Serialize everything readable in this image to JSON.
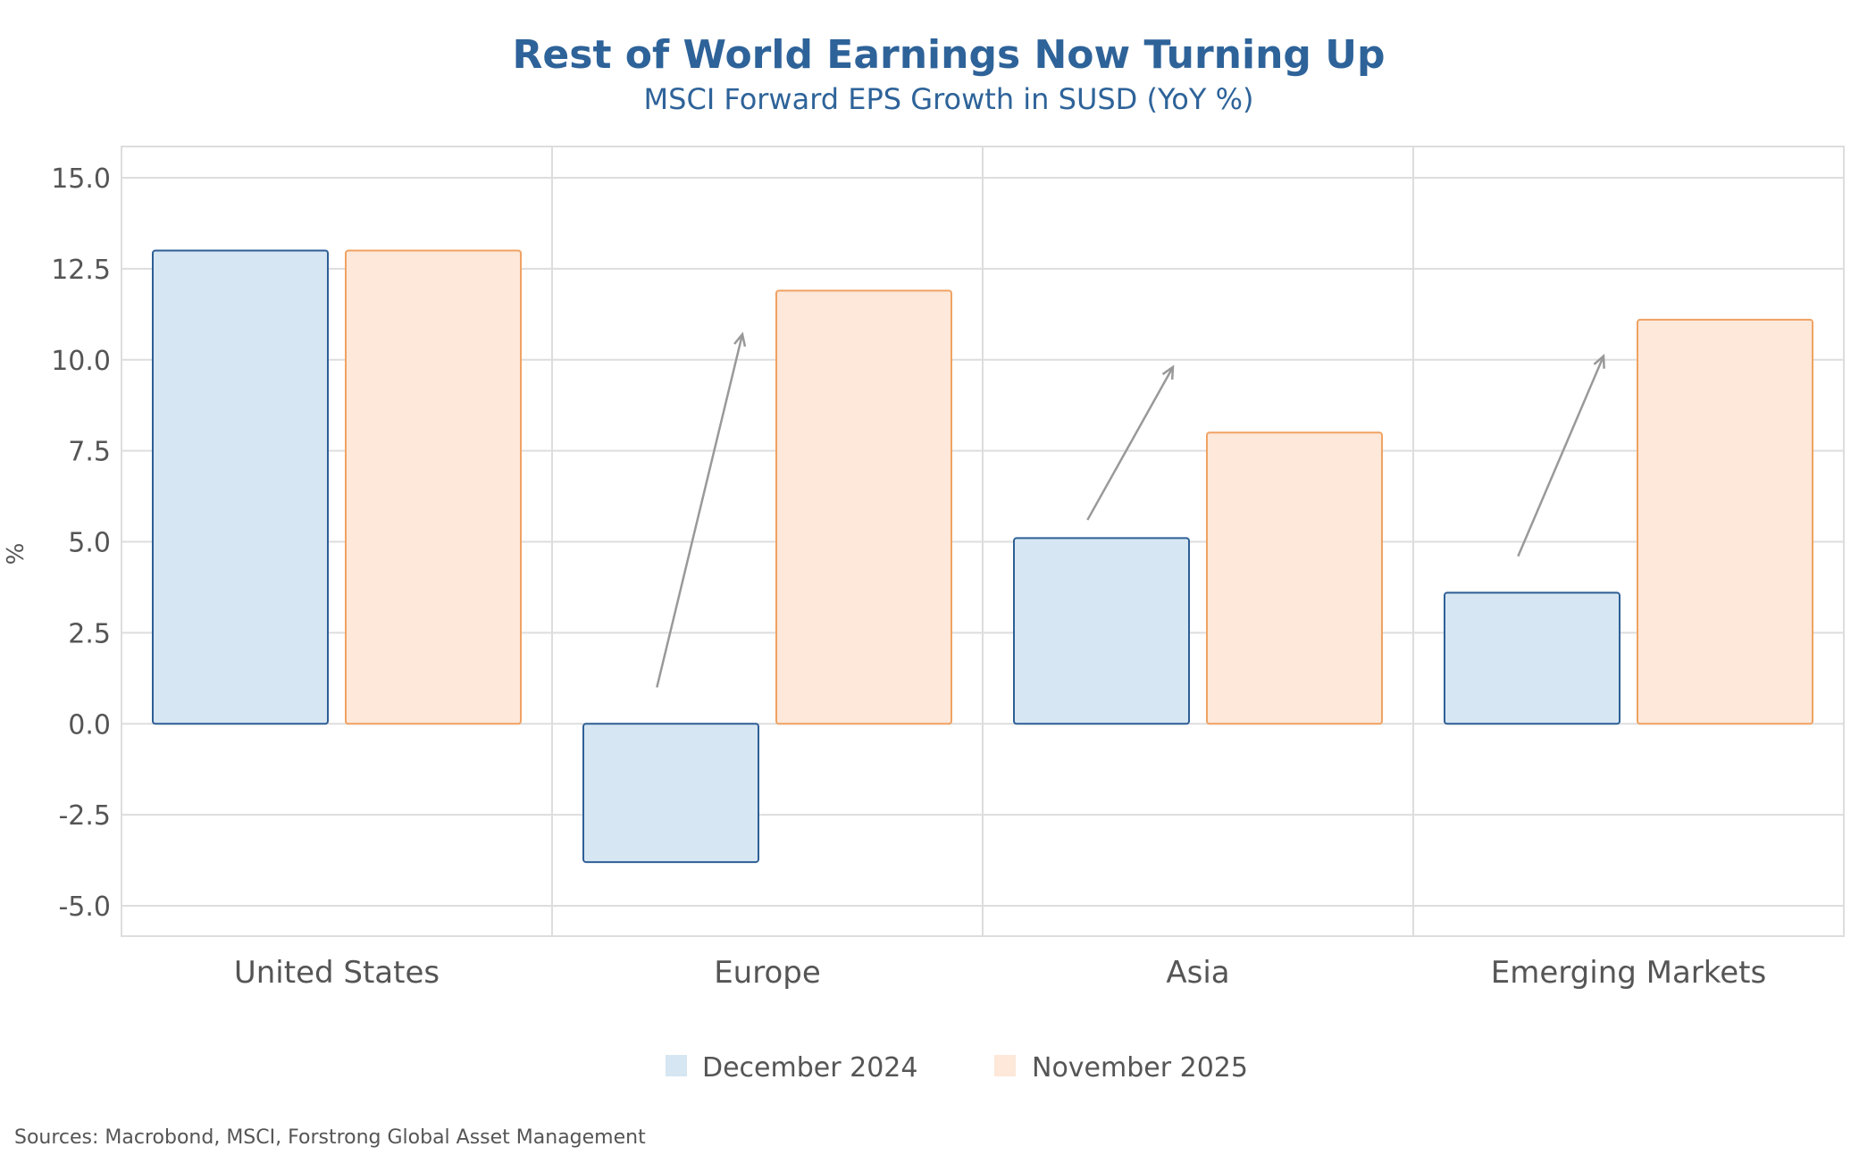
{
  "chart_data": {
    "type": "bar",
    "title": "Rest of World Earnings Now Turning Up",
    "subtitle": "MSCI Forward EPS Growth in SUSD (YoY %)",
    "ylabel": "%",
    "xlabel": "",
    "ylim": [
      -5.8,
      15.0
    ],
    "yticks": [
      15.0,
      12.5,
      10.0,
      7.5,
      5.0,
      2.5,
      0.0,
      -2.5,
      -5.0
    ],
    "ytick_labels": [
      "15.0",
      "12.5",
      "10.0",
      "7.5",
      "5.0",
      "2.5",
      "0.0",
      "-2.5",
      "-5.0"
    ],
    "grid": true,
    "categories": [
      "United States",
      "Europe",
      "Asia",
      "Emerging Markets"
    ],
    "series": [
      {
        "name": "December 2024",
        "values": [
          13.0,
          -3.8,
          5.1,
          3.6
        ],
        "fill": "#d6e6f2",
        "stroke": "#2e5f96"
      },
      {
        "name": "November 2025",
        "values": [
          13.0,
          11.9,
          8.0,
          11.1
        ],
        "fill": "#fde8da",
        "stroke": "#f0a262"
      }
    ],
    "arrows": [
      {
        "category": "Europe",
        "from": 1.0,
        "to": 10.7
      },
      {
        "category": "Asia",
        "from": 5.6,
        "to": 9.8
      },
      {
        "category": "Emerging Markets",
        "from": 4.6,
        "to": 10.1
      }
    ],
    "legend_position": "bottom-center",
    "source": "Sources: Macrobond, MSCI, Forstrong Global Asset Management"
  },
  "colors": {
    "title": "#2e6399",
    "grid": "#dddddd",
    "arrow": "#999999"
  }
}
